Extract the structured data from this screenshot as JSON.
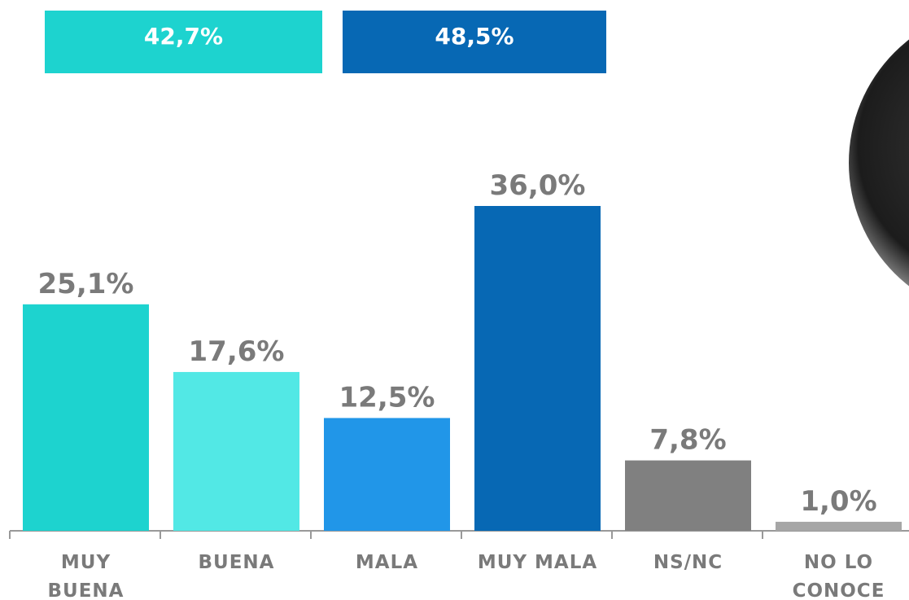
{
  "chart_data": {
    "type": "bar",
    "categories": [
      "MUY\nBUENA",
      "BUENA",
      "MALA",
      "MUY MALA",
      "NS/NC",
      "NO LO\nCONOCE"
    ],
    "values": [
      25.1,
      17.6,
      12.5,
      36.0,
      7.8,
      1.0
    ],
    "value_labels": [
      "25,1%",
      "17,6%",
      "12,5%",
      "36,0%",
      "7,8%",
      "1,0%"
    ],
    "colors": [
      "#1dd3cf",
      "#52e8e5",
      "#2196e8",
      "#0768b4",
      "#808080",
      "#a6a6a6"
    ],
    "summary": {
      "values": [
        42.7,
        48.5
      ],
      "value_labels": [
        "42,7%",
        "48,5%"
      ],
      "colors": [
        "#1dd3cf",
        "#0768b4"
      ]
    }
  }
}
